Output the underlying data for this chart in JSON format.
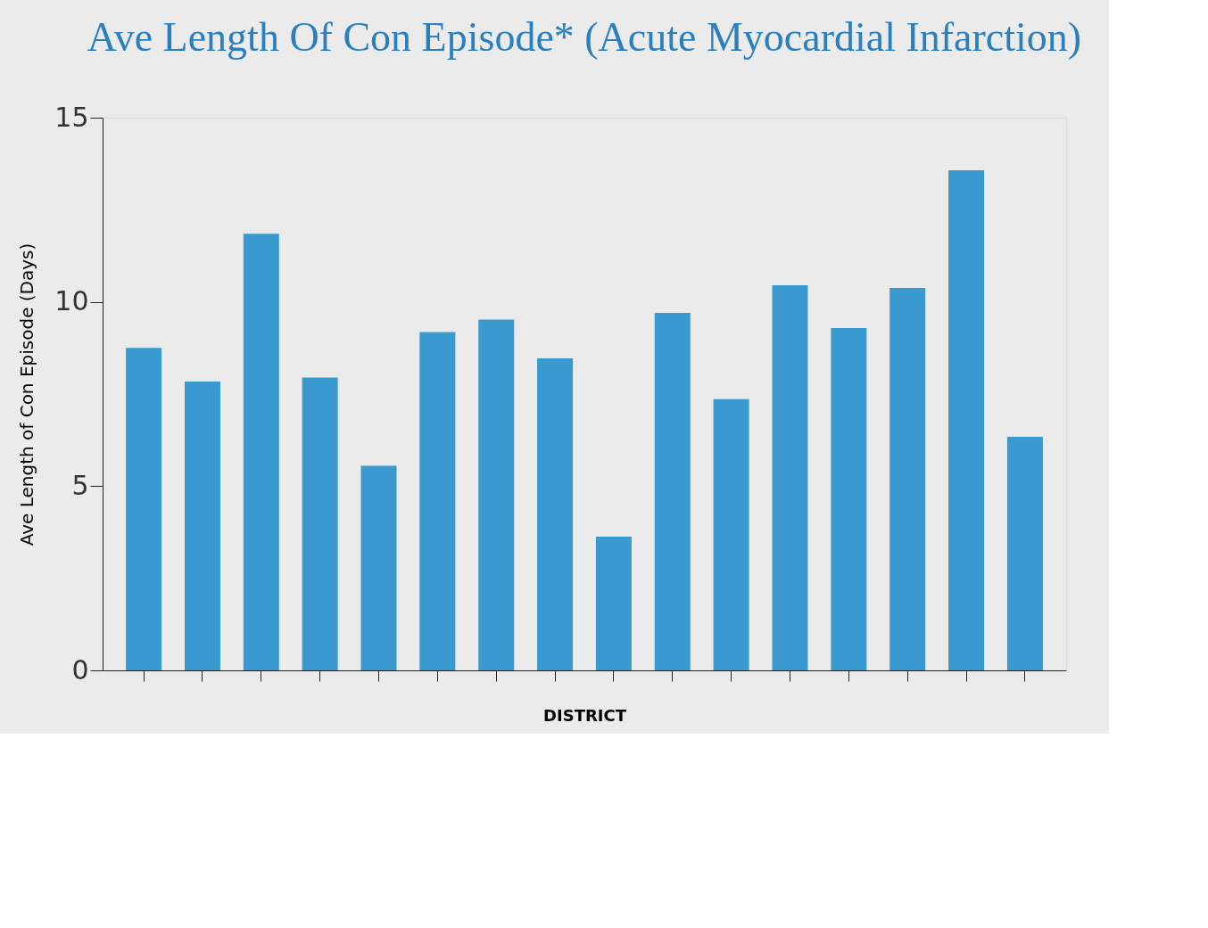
{
  "chart_data": {
    "type": "bar",
    "title": "Ave Length Of Con Episode* (Acute Myocardial Infarction)",
    "xlabel": "DISTRICT",
    "ylabel": "Ave Length of Con Episode (Days)",
    "categories": [
      null,
      null,
      null,
      null,
      null,
      null,
      null,
      null,
      null,
      null,
      null,
      null,
      null,
      null,
      null,
      null
    ],
    "values": [
      8.75,
      7.84,
      11.85,
      7.95,
      5.55,
      9.18,
      9.52,
      8.47,
      3.63,
      9.7,
      7.36,
      10.45,
      9.29,
      10.38,
      13.57,
      6.34
    ],
    "color": "#3a9ad0",
    "ylim": [
      0,
      15
    ],
    "yticks": [
      0,
      5,
      10,
      15
    ],
    "grid": false,
    "tick_labels": "y"
  }
}
